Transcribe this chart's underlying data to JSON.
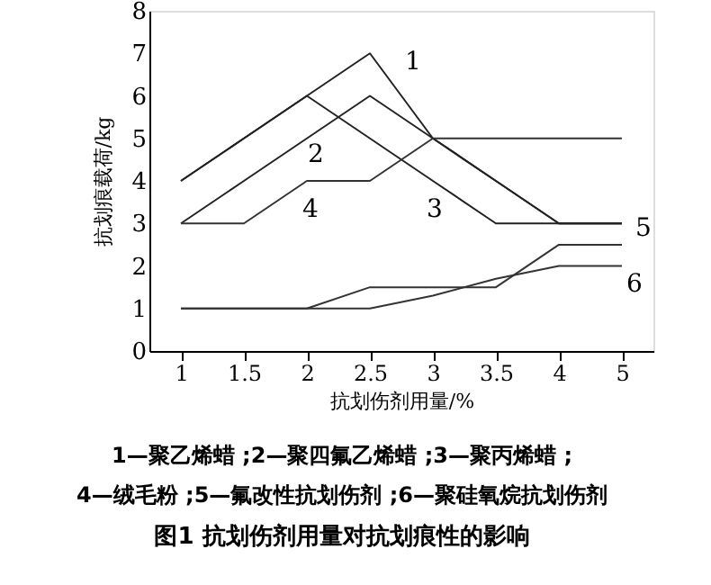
{
  "chart_data": {
    "type": "line",
    "title": "图1  抗划伤剂用量对抗划痕性的影响",
    "xlabel": "抗划伤剂用量/%",
    "ylabel": "抗划痕载荷/kg",
    "categories": [
      "1",
      "1.5",
      "2",
      "2.5",
      "3",
      "3.5",
      "4",
      "5"
    ],
    "series": [
      {
        "name": "1",
        "color": "#222222",
        "values": [
          4,
          5,
          6,
          7,
          5,
          4,
          3,
          3
        ]
      },
      {
        "name": "2",
        "color": "#222222",
        "values": [
          3,
          4,
          5,
          6,
          5,
          4,
          3,
          3
        ]
      },
      {
        "name": "3",
        "color": "#222222",
        "values": [
          4,
          5,
          6,
          5,
          4,
          3,
          3,
          3
        ]
      },
      {
        "name": "4",
        "color": "#333333",
        "values": [
          3,
          3,
          4,
          4,
          5,
          5,
          5,
          5
        ]
      },
      {
        "name": "5",
        "color": "#333333",
        "values": [
          1,
          1,
          1,
          1.5,
          1.5,
          1.5,
          2.5,
          2.5
        ]
      },
      {
        "name": "6",
        "color": "#333333",
        "values": [
          1,
          1,
          1,
          1,
          1.3,
          1.7,
          2,
          2
        ]
      }
    ],
    "ylim": [
      0,
      8
    ],
    "yticks": [
      0,
      1,
      2,
      3,
      4,
      5,
      6,
      7,
      8
    ],
    "grid": false,
    "marker": "none",
    "line_style": "solid",
    "annotations": [
      "1—聚乙烯蜡 ;2—聚四氟乙烯蜡 ;3—聚丙烯蜡 ;",
      "4—绒毛粉 ;5—氟改性抗划伤剂 ;6—聚硅氧烷抗划伤剂"
    ]
  }
}
